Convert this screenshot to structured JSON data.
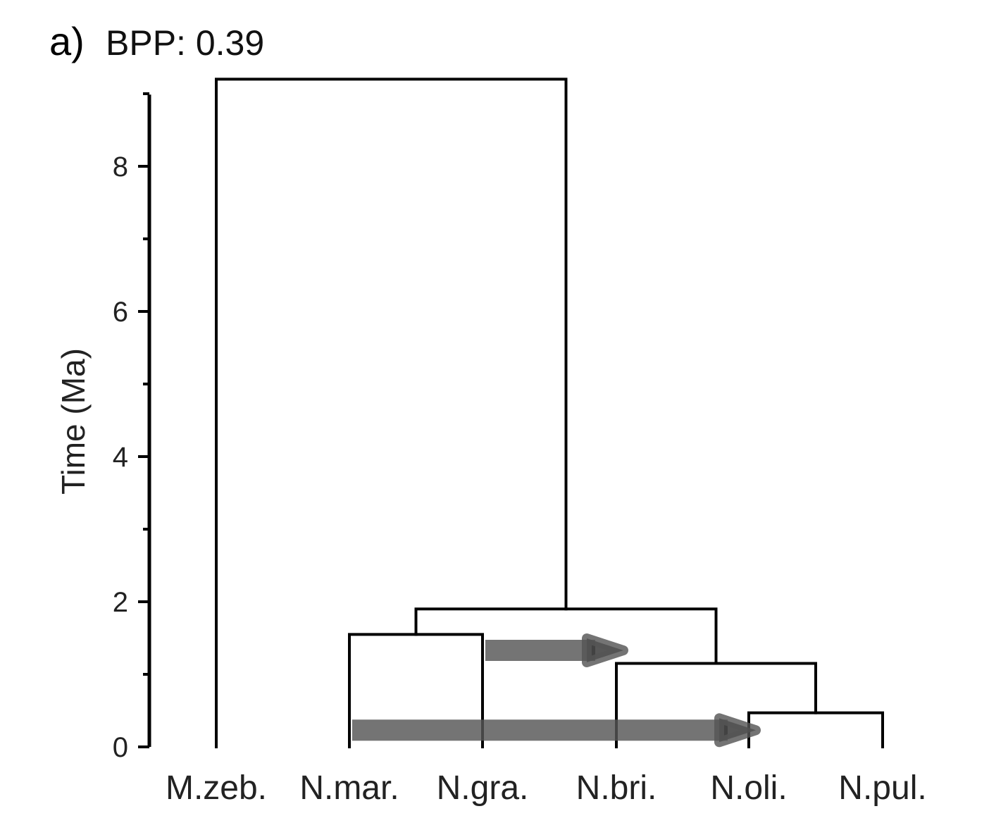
{
  "panel": {
    "letter": "a)",
    "title": "BPP: 0.39"
  },
  "axis": {
    "label": "Time (Ma)",
    "range": [
      0,
      9.2
    ],
    "major_ticks": [
      "0",
      "2",
      "4",
      "6",
      "8"
    ],
    "minor_ticks": [
      1,
      3,
      5,
      7,
      9
    ]
  },
  "chart_data": {
    "type": "tree",
    "units": "Ma",
    "taxa": [
      "M.zeb.",
      "N.mar.",
      "N.gra.",
      "N.bri.",
      "N.oli.",
      "N.pul."
    ],
    "nodes": [
      {
        "children": [
          "M.zeb.",
          "ingroup"
        ],
        "age": 9.2
      },
      {
        "id": "ingroup",
        "children": [
          "mar-gra",
          "bri-oli-pul"
        ],
        "age": 1.9
      },
      {
        "id": "mar-gra",
        "children": [
          "N.mar.",
          "N.gra."
        ],
        "age": 1.55
      },
      {
        "id": "bri-oli-pul",
        "children": [
          "N.bri.",
          "oli-pul"
        ],
        "age": 1.15
      },
      {
        "id": "oli-pul",
        "children": [
          "N.oli.",
          "N.pul."
        ],
        "age": 0.47
      }
    ],
    "introgression": [
      {
        "from": "N.gra.",
        "to": "N.bri.",
        "age": 1.33
      },
      {
        "from": "N.mar.",
        "to": "N.oli.",
        "age": 0.23
      }
    ]
  }
}
